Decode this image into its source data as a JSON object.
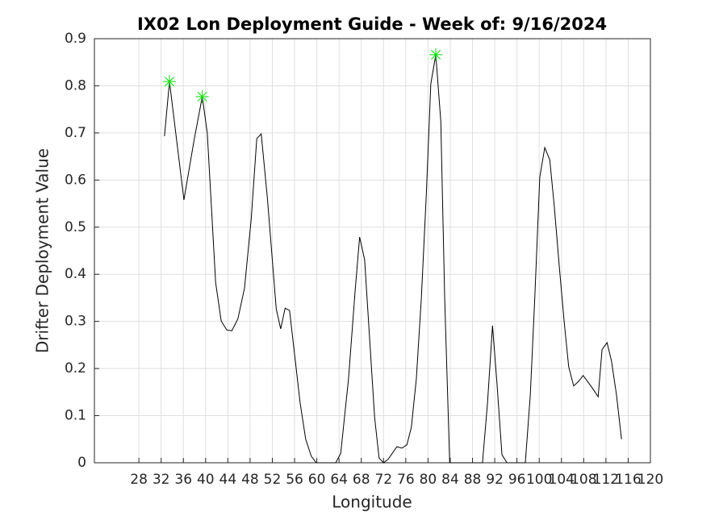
{
  "chart_data": {
    "type": "line",
    "title": "IX02 Lon Deployment Guide - Week of: 9/16/2024",
    "x_label": "Longitude",
    "y_label": "Drifter Deployment Value",
    "xlim": [
      20,
      120
    ],
    "xticks": [
      28,
      32,
      36,
      40,
      44,
      48,
      52,
      56,
      60,
      64,
      68,
      72,
      76,
      80,
      84,
      88,
      92,
      96,
      100,
      104,
      108,
      112,
      116,
      120
    ],
    "ylim": [
      0,
      0.9
    ],
    "yticks": [
      0,
      0.1,
      0.2,
      0.3,
      0.4,
      0.5,
      0.6,
      0.7,
      0.8,
      0.9
    ],
    "grid": true,
    "series": [
      {
        "color": "#000000",
        "x": [
          32.6,
          33.5,
          36.1,
          37.9,
          39.4,
          40.3,
          41.8,
          42.8,
          43.8,
          44.7,
          45.8,
          47.0,
          48.2,
          49.2,
          50.0,
          51.1,
          52.7,
          53.5,
          54.3,
          55.1,
          57.0,
          58.0,
          59.0,
          59.9,
          63.4,
          64.3,
          65.7,
          66.9,
          67.7,
          68.6,
          69.5,
          70.4,
          71.2,
          72.0,
          72.8,
          74.4,
          75.3,
          76.2,
          77.0,
          77.9,
          78.8,
          79.7,
          80.5,
          81.4,
          82.3,
          83.0,
          83.9,
          89.8,
          90.7,
          91.6,
          92.4,
          93.3,
          94.2,
          97.5,
          98.4,
          99.2,
          100.1,
          101.0,
          101.9,
          102.7,
          103.6,
          104.5,
          105.3,
          106.2,
          107.1,
          107.9,
          108.8,
          109.7,
          110.6,
          111.3,
          112.2,
          113.0,
          113.9,
          114.8
        ],
        "values": [
          0.693,
          0.809,
          0.558,
          0.683,
          0.777,
          0.7,
          0.383,
          0.301,
          0.282,
          0.28,
          0.305,
          0.371,
          0.517,
          0.688,
          0.698,
          0.563,
          0.327,
          0.284,
          0.328,
          0.323,
          0.127,
          0.05,
          0.014,
          0,
          0,
          0.02,
          0.178,
          0.366,
          0.479,
          0.431,
          0.263,
          0.096,
          0.01,
          0,
          0.007,
          0.034,
          0.031,
          0.038,
          0.075,
          0.178,
          0.349,
          0.571,
          0.804,
          0.866,
          0.725,
          0.349,
          0,
          0,
          0.127,
          0.291,
          0.169,
          0.017,
          0,
          0,
          0.144,
          0.349,
          0.606,
          0.669,
          0.643,
          0.546,
          0.418,
          0.298,
          0.204,
          0.163,
          0.173,
          0.185,
          0.171,
          0.156,
          0.14,
          0.24,
          0.255,
          0.216,
          0.144,
          0.05
        ]
      }
    ],
    "peaks": {
      "color": "#00e000",
      "x": [
        33.5,
        39.4,
        81.4
      ],
      "values": [
        0.809,
        0.777,
        0.866
      ]
    }
  }
}
